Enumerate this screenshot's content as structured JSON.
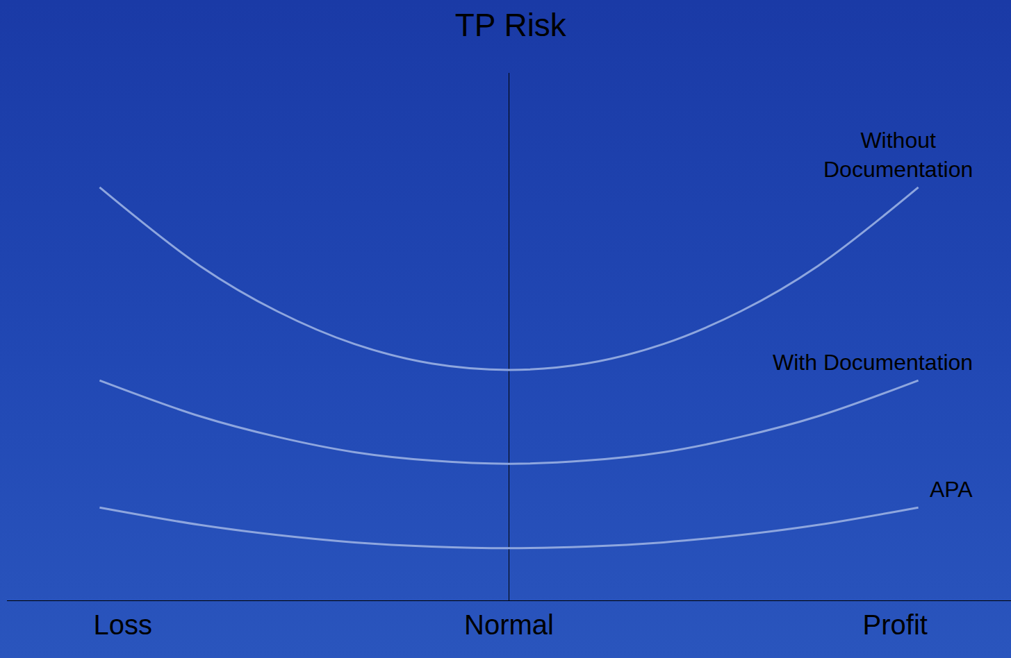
{
  "chart_data": {
    "type": "line",
    "title": "TP Risk",
    "x": [
      -1.06,
      -0.8,
      -0.6,
      -0.4,
      -0.2,
      0,
      0.2,
      0.4,
      0.6,
      0.8,
      1.06
    ],
    "xlim": [
      -1.3,
      1.3
    ],
    "xticks": [
      {
        "value": -1,
        "label": "Loss"
      },
      {
        "value": 0,
        "label": "Normal"
      },
      {
        "value": 1,
        "label": "Profit"
      }
    ],
    "ylim": [
      0,
      10
    ],
    "tick_labels": "x",
    "grid": false,
    "series": [
      {
        "name": "Without Documentation",
        "color": "#8ea6de",
        "values": [
          7.83,
          6.34,
          5.48,
          4.86,
          4.49,
          4.37,
          4.49,
          4.86,
          5.48,
          6.34,
          7.83
        ]
      },
      {
        "name": "With Documentation",
        "color": "#8ea6de",
        "values": [
          4.17,
          3.49,
          3.1,
          2.81,
          2.65,
          2.59,
          2.65,
          2.81,
          3.1,
          3.49,
          4.17
        ]
      },
      {
        "name": "APA",
        "color": "#8ea6de",
        "values": [
          1.76,
          1.43,
          1.24,
          1.1,
          1.02,
          0.99,
          1.02,
          1.1,
          1.24,
          1.43,
          1.76
        ]
      }
    ]
  }
}
